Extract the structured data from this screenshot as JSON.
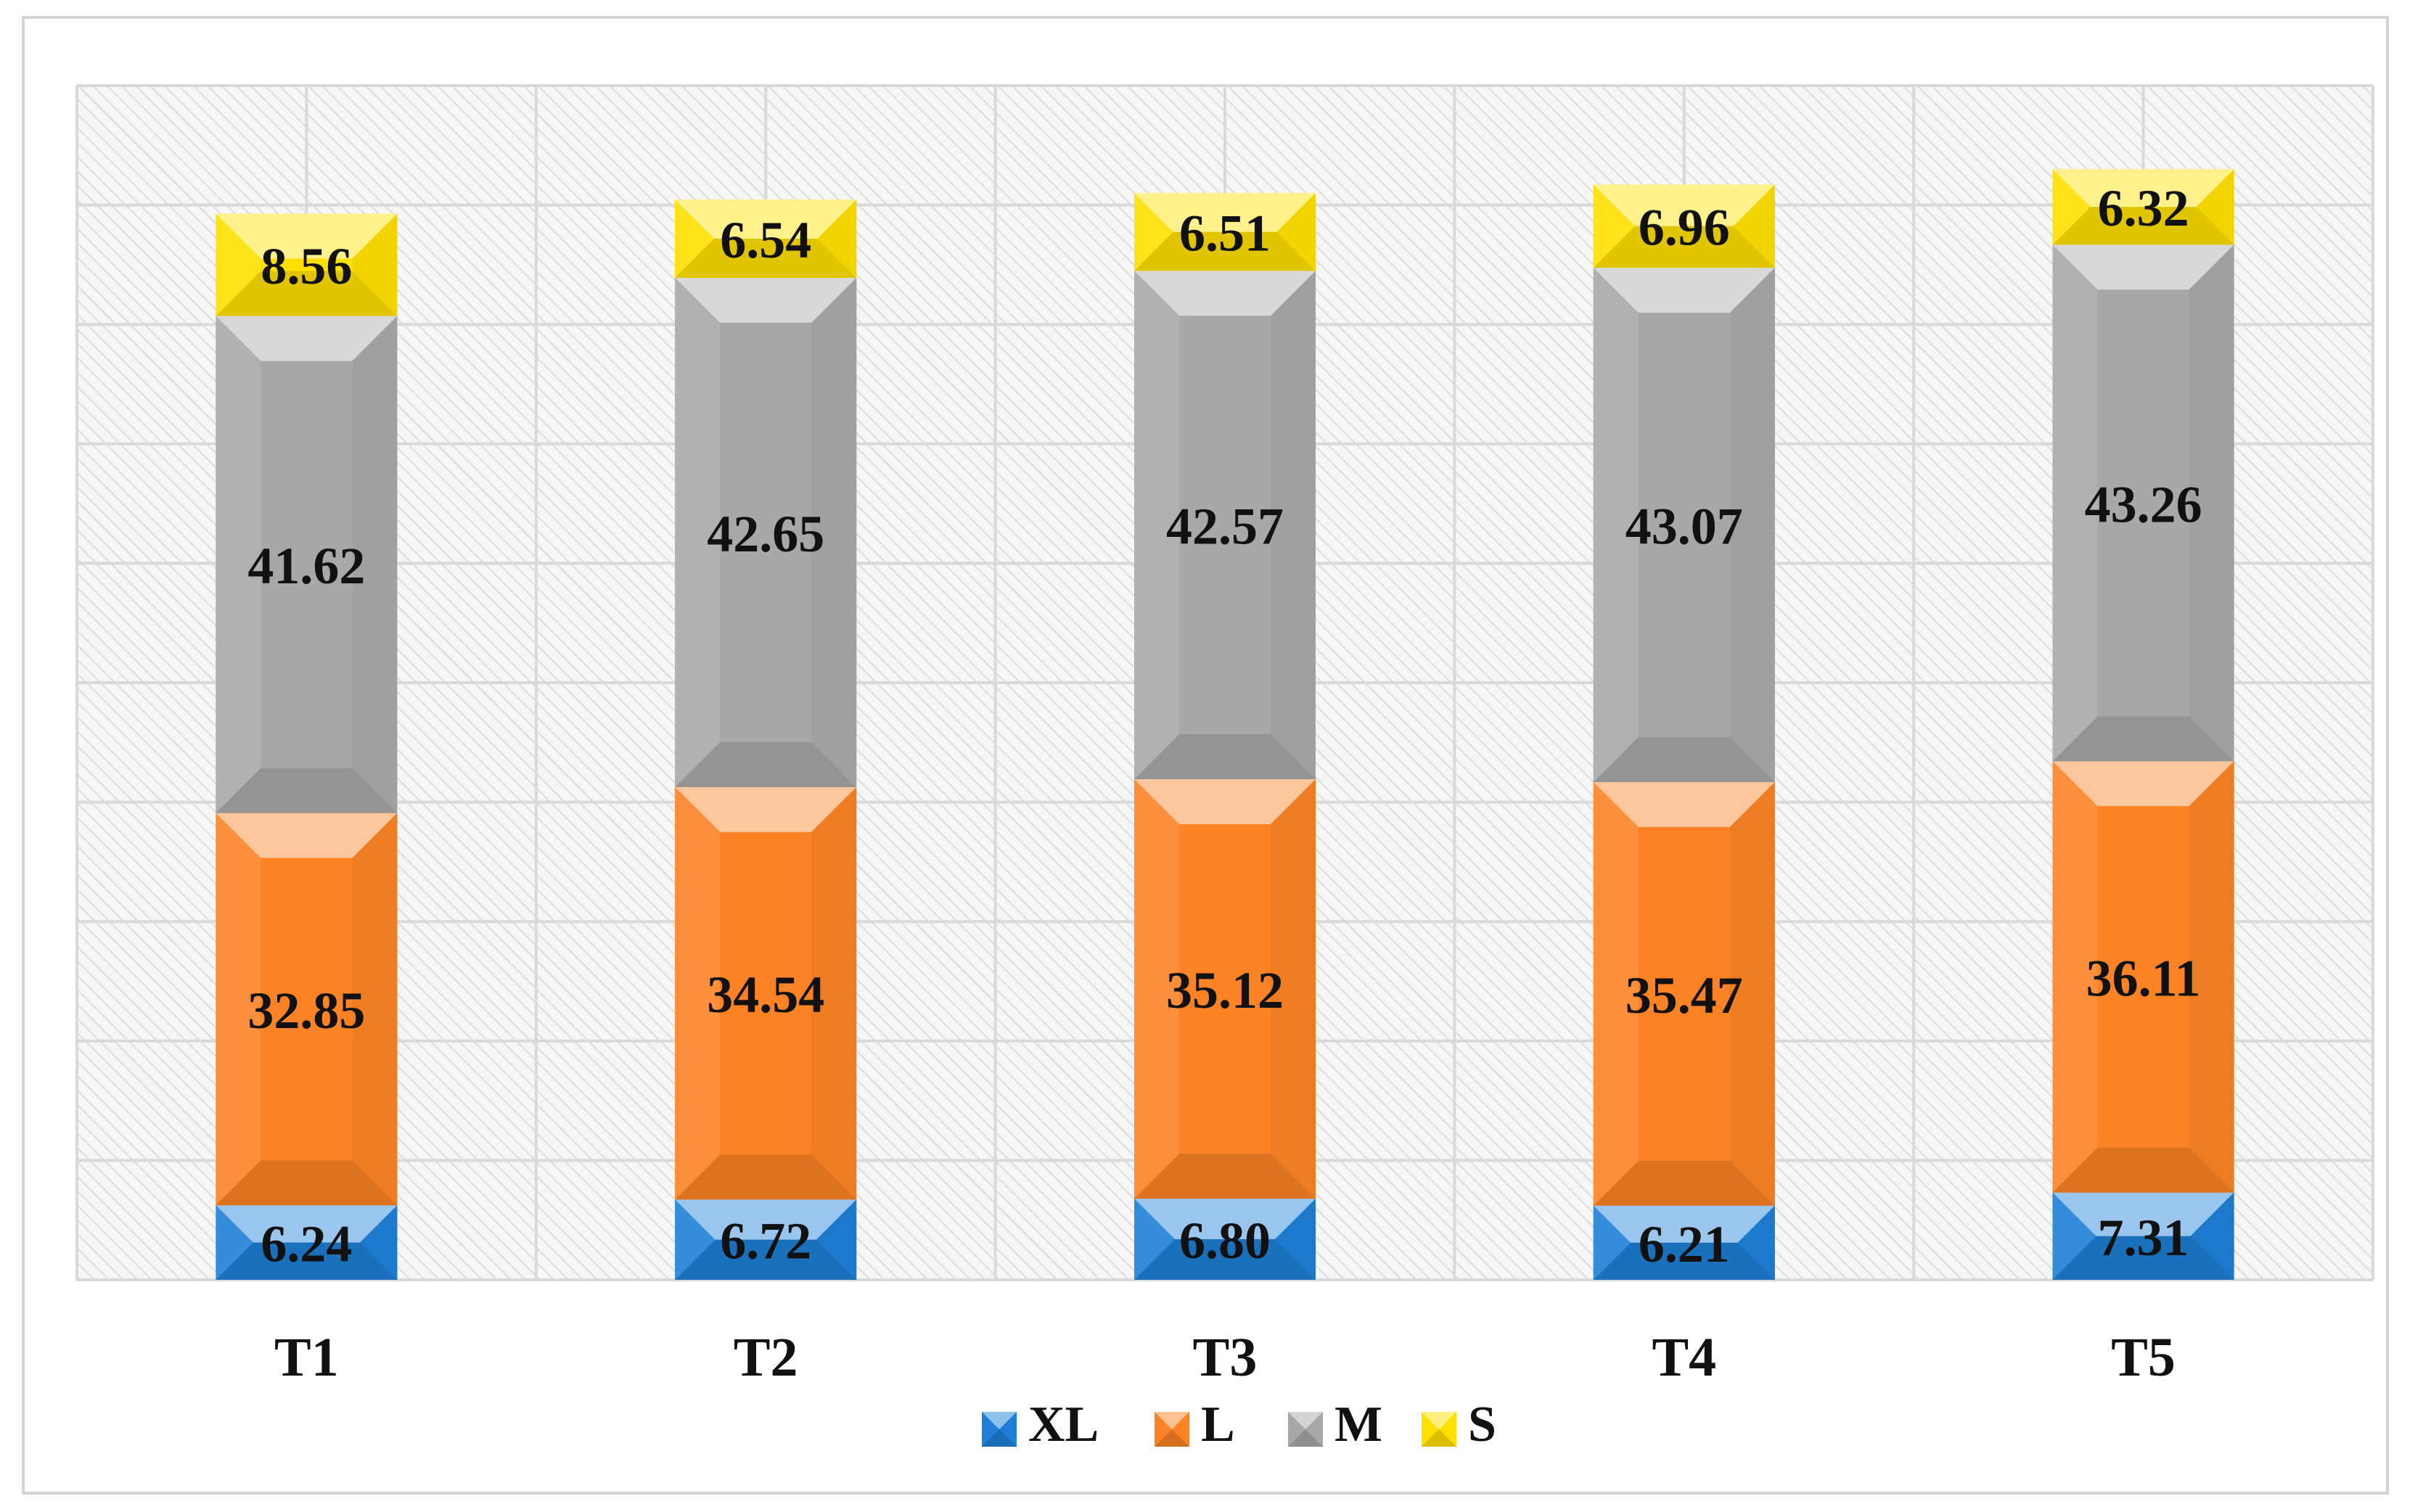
{
  "chart_data": {
    "type": "bar",
    "stacked": true,
    "categories": [
      "T1",
      "T2",
      "T3",
      "T4",
      "T5"
    ],
    "series": [
      {
        "name": "XL",
        "color": "#1f7fd6",
        "values": [
          6.24,
          6.72,
          6.8,
          6.21,
          7.31
        ],
        "labels": [
          "6.24",
          "6.72",
          "6.80",
          "6.21",
          "7.31"
        ]
      },
      {
        "name": "L",
        "color": "#fb8225",
        "values": [
          32.85,
          34.54,
          35.12,
          35.47,
          36.11
        ],
        "labels": [
          "32.85",
          "34.54",
          "35.12",
          "35.47",
          "36.11"
        ]
      },
      {
        "name": "M",
        "color": "#a8a8a8",
        "values": [
          41.62,
          42.65,
          42.57,
          43.07,
          43.26
        ],
        "labels": [
          "41.62",
          "42.65",
          "42.57",
          "43.07",
          "43.26"
        ]
      },
      {
        "name": "S",
        "color": "#ffe000",
        "values": [
          8.56,
          6.54,
          6.51,
          6.96,
          6.32
        ],
        "labels": [
          "8.56",
          "6.54",
          "6.51",
          "6.96",
          "6.32"
        ]
      }
    ],
    "ylim": [
      0,
      100
    ],
    "grid": true,
    "legend_position": "bottom",
    "title": "",
    "xlabel": "",
    "ylabel": ""
  }
}
